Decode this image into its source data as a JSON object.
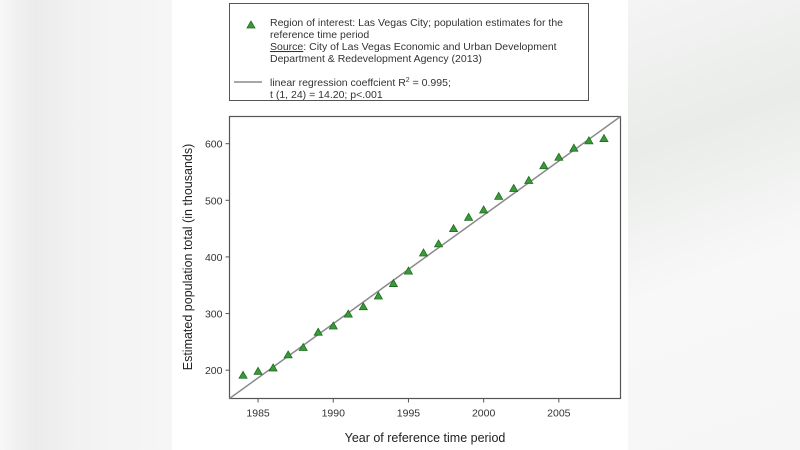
{
  "legend": {
    "marker_lines": [
      "Region of interest: Las Vegas City; population estimates for the",
      "reference time period"
    ],
    "source_label": "Source",
    "source_rest": ": City of Las Vegas Economic and Urban Development",
    "source_line2": "Department & Redevelopment Agency (2013)",
    "line_label_1a": "linear regression coeffcient R",
    "line_label_1sup": "2",
    "line_label_1b": " = 0.995;",
    "line_label_2": "t (1, 24) = 14.20; p<.001"
  },
  "colors": {
    "marker_fill": "#3a9a3a",
    "marker_edge": "#1f6b1f",
    "regression_line": "#8a8a8a",
    "frame": "#555555"
  },
  "chart_data": {
    "type": "scatter",
    "title": "",
    "xlabel": "Year of reference time period",
    "ylabel": "Estimated population total (in thousands)",
    "xlim": [
      1983.1,
      2009.1
    ],
    "ylim": [
      150,
      648
    ],
    "xticks": [
      1985,
      1990,
      1995,
      2000,
      2005
    ],
    "yticks": [
      200,
      300,
      400,
      500,
      600
    ],
    "grid": false,
    "legend_position": "top (outside plot)",
    "series": [
      {
        "name": "Region of interest: Las Vegas City; population estimates for the reference time period",
        "marker": "triangle",
        "x": [
          1984,
          1985,
          1986,
          1987,
          1988,
          1989,
          1990,
          1991,
          1992,
          1993,
          1994,
          1995,
          1996,
          1997,
          1998,
          1999,
          2000,
          2001,
          2002,
          2003,
          2004,
          2005,
          2006,
          2007,
          2008
        ],
        "y": [
          191,
          198,
          204,
          227,
          240,
          267,
          278,
          299,
          312,
          331,
          353,
          375,
          407,
          423,
          450,
          470,
          483,
          507,
          521,
          535,
          561,
          576,
          592,
          605,
          609
        ]
      },
      {
        "name": "linear regression coeffcient R^2 = 0.995; t (1, 24) = 14.20; p<.001",
        "type": "line",
        "x": [
          1983.1,
          2009.1
        ],
        "y": [
          150,
          648
        ]
      }
    ],
    "annotations": [
      "Source: City of Las Vegas Economic and Urban Development Department & Redevelopment Agency (2013)"
    ]
  }
}
